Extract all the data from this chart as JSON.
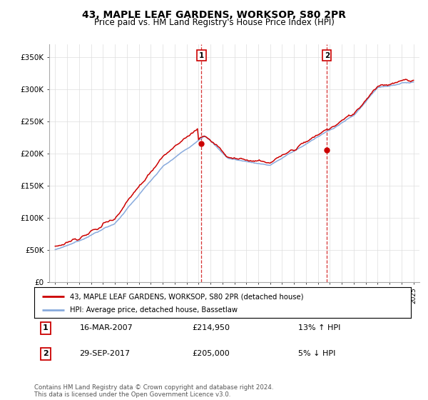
{
  "title": "43, MAPLE LEAF GARDENS, WORKSOP, S80 2PR",
  "subtitle": "Price paid vs. HM Land Registry's House Price Index (HPI)",
  "ylim": [
    0,
    370000
  ],
  "yticks": [
    0,
    50000,
    100000,
    150000,
    200000,
    250000,
    300000,
    350000
  ],
  "ytick_labels": [
    "£0",
    "£50K",
    "£100K",
    "£150K",
    "£200K",
    "£250K",
    "£300K",
    "£350K"
  ],
  "line1_color": "#cc0000",
  "line2_color": "#88aadd",
  "marker1_price": 214950,
  "marker2_price": 205000,
  "marker1_date": "16-MAR-2007",
  "marker2_date": "29-SEP-2017",
  "marker1_hpi": "13% ↑ HPI",
  "marker2_hpi": "5% ↓ HPI",
  "legend_line1": "43, MAPLE LEAF GARDENS, WORKSOP, S80 2PR (detached house)",
  "legend_line2": "HPI: Average price, detached house, Bassetlaw",
  "footer": "Contains HM Land Registry data © Crown copyright and database right 2024.\nThis data is licensed under the Open Government Licence v3.0.",
  "grid_color": "#dddddd",
  "start_year": 1995,
  "end_year": 2025,
  "marker1_year": 2007.21,
  "marker2_year": 2017.75
}
